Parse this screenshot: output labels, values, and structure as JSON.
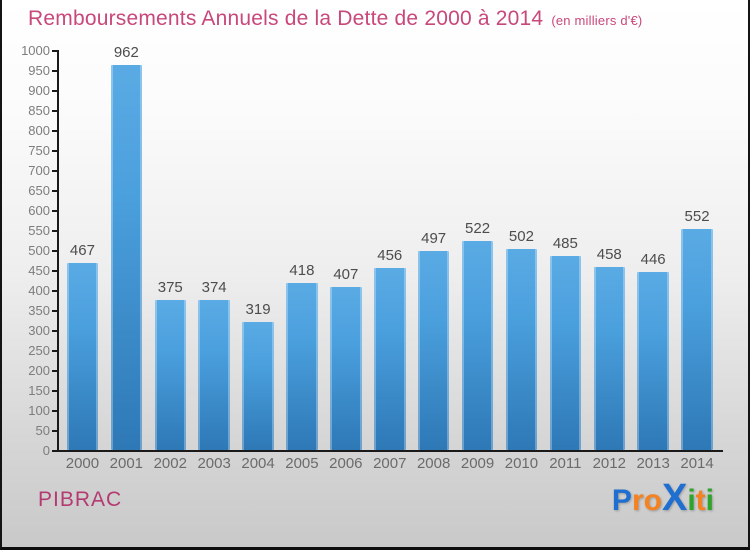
{
  "title": {
    "text": "Remboursements Annuels de la Dette de 2000 à 2014",
    "subtitle": "(en milliers d'€)",
    "color": "#c8487b"
  },
  "footer": {
    "municipality": "PIBRAC",
    "municipality_color": "#b53a72",
    "logo_name": "Proxiti",
    "logo_letters": [
      {
        "ch": "P",
        "color": "#1e6fd0",
        "big": false
      },
      {
        "ch": "r",
        "color": "#f58220",
        "big": false
      },
      {
        "ch": "o",
        "color": "#f58220",
        "big": false
      },
      {
        "ch": "X",
        "color": "#1e6fd0",
        "big": true
      },
      {
        "ch": "i",
        "color": "#2fa42b",
        "big": false
      },
      {
        "ch": "t",
        "color": "#f58220",
        "big": false
      },
      {
        "ch": "i",
        "color": "#2fa42b",
        "big": false
      }
    ]
  },
  "chart_data": {
    "type": "bar",
    "title": "Remboursements Annuels de la Dette de 2000 à 2014",
    "subtitle": "(en milliers d'€)",
    "categories": [
      "2000",
      "2001",
      "2002",
      "2003",
      "2004",
      "2005",
      "2006",
      "2007",
      "2008",
      "2009",
      "2010",
      "2011",
      "2012",
      "2013",
      "2014"
    ],
    "values": [
      467,
      962,
      375,
      374,
      319,
      418,
      407,
      456,
      497,
      522,
      502,
      485,
      458,
      446,
      552
    ],
    "xlabel": "",
    "ylabel": "",
    "ylim": [
      0,
      1000
    ],
    "ytick_step": 50,
    "grid": false,
    "legend": "none",
    "bar_color_top": "#5aabe4",
    "bar_color_bottom": "#2e78b6",
    "value_label_color": "#4d4d4d",
    "tick_label_color": "#7d7d7d"
  }
}
